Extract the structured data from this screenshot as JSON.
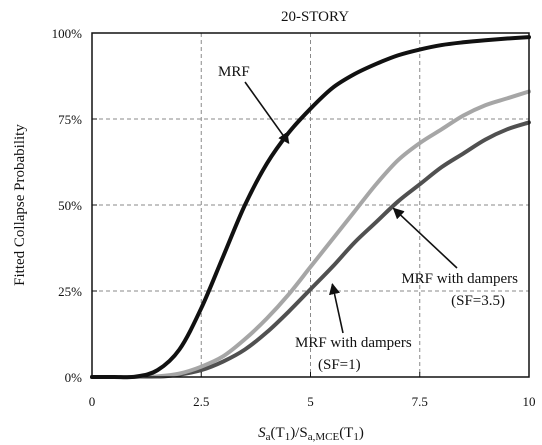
{
  "chart_data": {
    "type": "line",
    "title": "20-STORY",
    "xlabel": {
      "main": "S",
      "sub1": "a",
      "mid1": "(T",
      "sub2": "1",
      "mid2": ")/S",
      "sub3": "a,MCE",
      "mid3": "(T",
      "sub4": "1",
      "end": ")"
    },
    "ylabel": "Fitted Collapse Probability",
    "xlim": [
      0,
      10
    ],
    "ylim": [
      0,
      1
    ],
    "xticks": [
      0,
      2.5,
      5,
      7.5,
      10
    ],
    "xtick_labels": [
      "0",
      "2.5",
      "5",
      "7.5",
      "10"
    ],
    "yticks": [
      0,
      0.25,
      0.5,
      0.75,
      1
    ],
    "ytick_labels": [
      "0%",
      "25%",
      "50%",
      "75%",
      "100%"
    ],
    "grid": true,
    "series": [
      {
        "key": "mrf",
        "color": "#111111",
        "points": [
          [
            0,
            0
          ],
          [
            0.5,
            0
          ],
          [
            1,
            0.001
          ],
          [
            1.5,
            0.02
          ],
          [
            2,
            0.08
          ],
          [
            2.5,
            0.2
          ],
          [
            3,
            0.35
          ],
          [
            3.5,
            0.5
          ],
          [
            4,
            0.62
          ],
          [
            4.5,
            0.71
          ],
          [
            5,
            0.78
          ],
          [
            5.5,
            0.84
          ],
          [
            6,
            0.88
          ],
          [
            6.5,
            0.91
          ],
          [
            7,
            0.935
          ],
          [
            7.5,
            0.952
          ],
          [
            8,
            0.965
          ],
          [
            8.5,
            0.973
          ],
          [
            9,
            0.979
          ],
          [
            9.5,
            0.984
          ],
          [
            10,
            0.988
          ]
        ]
      },
      {
        "key": "sf1",
        "color": "#a6a6a6",
        "points": [
          [
            0,
            0
          ],
          [
            1,
            0
          ],
          [
            1.5,
            0.002
          ],
          [
            2,
            0.01
          ],
          [
            2.5,
            0.03
          ],
          [
            3,
            0.06
          ],
          [
            3.5,
            0.11
          ],
          [
            4,
            0.17
          ],
          [
            4.5,
            0.24
          ],
          [
            5,
            0.32
          ],
          [
            5.5,
            0.4
          ],
          [
            6,
            0.48
          ],
          [
            6.5,
            0.56
          ],
          [
            7,
            0.63
          ],
          [
            7.5,
            0.68
          ],
          [
            8,
            0.72
          ],
          [
            8.5,
            0.76
          ],
          [
            9,
            0.79
          ],
          [
            9.5,
            0.81
          ],
          [
            10,
            0.83
          ]
        ]
      },
      {
        "key": "sf35",
        "color": "#505050",
        "points": [
          [
            0,
            0
          ],
          [
            1,
            0
          ],
          [
            1.5,
            0.001
          ],
          [
            2,
            0.007
          ],
          [
            2.5,
            0.02
          ],
          [
            3,
            0.045
          ],
          [
            3.5,
            0.08
          ],
          [
            4,
            0.13
          ],
          [
            4.5,
            0.19
          ],
          [
            5,
            0.255
          ],
          [
            5.5,
            0.32
          ],
          [
            6,
            0.39
          ],
          [
            6.5,
            0.45
          ],
          [
            7,
            0.51
          ],
          [
            7.5,
            0.56
          ],
          [
            8,
            0.61
          ],
          [
            8.5,
            0.65
          ],
          [
            9,
            0.69
          ],
          [
            9.5,
            0.72
          ],
          [
            10,
            0.74
          ]
        ]
      }
    ],
    "annotations": [
      {
        "key": "mrf",
        "lines": [
          "MRF"
        ],
        "target": [
          4.5,
          0.68
        ]
      },
      {
        "key": "sf35",
        "lines": [
          "MRF with dampers",
          "(SF=3.5)"
        ],
        "target": [
          6.9,
          0.49
        ]
      },
      {
        "key": "sf1",
        "lines": [
          "MRF with dampers",
          "(SF=1)"
        ],
        "target": [
          5.5,
          0.27
        ]
      }
    ]
  }
}
